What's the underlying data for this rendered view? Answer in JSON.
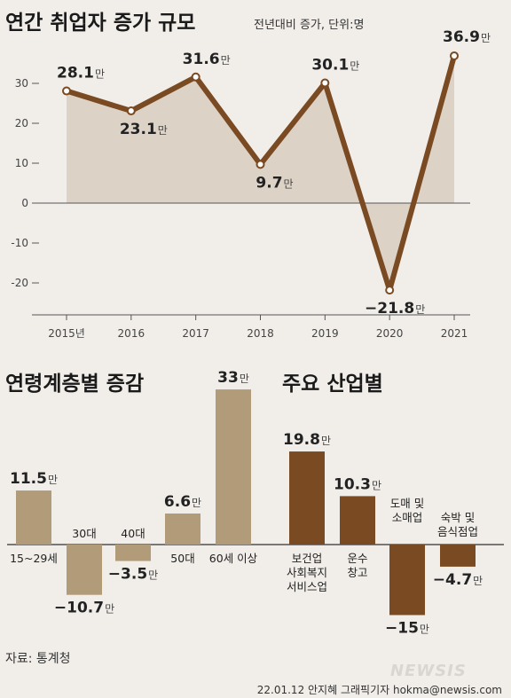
{
  "title": "연간 취업자 증가 규모",
  "subtitle": "전년대비 증가, 단위:명",
  "unit": "만",
  "colors": {
    "background": "#f1eeea",
    "line": "#7a4a22",
    "area": "#ddd2c6",
    "bar_age": "#b29b78",
    "bar_industry": "#7a4a22",
    "axis": "#555555",
    "grid": "#b8b2ab"
  },
  "chart_data": [
    {
      "type": "line",
      "title": "연간 취업자 증가 규모",
      "subtitle": "전년대비 증가, 단위:명",
      "x": [
        "2015년",
        "2016",
        "2017",
        "2018",
        "2019",
        "2020",
        "2021"
      ],
      "values": [
        28.1,
        23.1,
        31.6,
        9.7,
        30.1,
        -21.8,
        36.9
      ],
      "data_labels": [
        "28.1",
        "23.1",
        "31.6",
        "9.7",
        "30.1",
        "−21.8",
        "36.9"
      ],
      "unit": "만",
      "yticks": [
        "30",
        "20",
        "10",
        "0",
        "-10",
        "-20"
      ],
      "ytick_values": [
        30,
        20,
        10,
        0,
        -10,
        -20
      ],
      "ylim": [
        -28,
        40
      ],
      "fill": "area-to-zero",
      "grid": false
    },
    {
      "type": "bar",
      "title": "연령계층별 증감",
      "categories": [
        "15~29세",
        "30대",
        "40대",
        "50대",
        "60세 이상"
      ],
      "values": [
        11.5,
        -10.7,
        -3.5,
        6.6,
        33
      ],
      "data_labels": [
        "11.5",
        "−10.7",
        "−3.5",
        "6.6",
        "33"
      ],
      "unit": "만"
    },
    {
      "type": "bar",
      "title": "주요 산업별",
      "categories": [
        "보건업 사회복지 서비스업",
        "운수 창고",
        "도매 및 소매업",
        "숙박 및 음식점업"
      ],
      "category_lines": [
        [
          "보건업",
          "사회복지",
          "서비스업"
        ],
        [
          "운수",
          "창고"
        ],
        [
          "도매 및",
          "소매업"
        ],
        [
          "숙박 및",
          "음식점업"
        ]
      ],
      "values": [
        19.8,
        10.3,
        -15,
        -4.7
      ],
      "data_labels": [
        "19.8",
        "10.3",
        "−15",
        "−4.7"
      ],
      "unit": "만"
    }
  ],
  "source": "자료: 통계청",
  "credit": "22.01.12 안지혜 그래픽기자  hokma@newsis.com",
  "logo": "NEWSIS"
}
